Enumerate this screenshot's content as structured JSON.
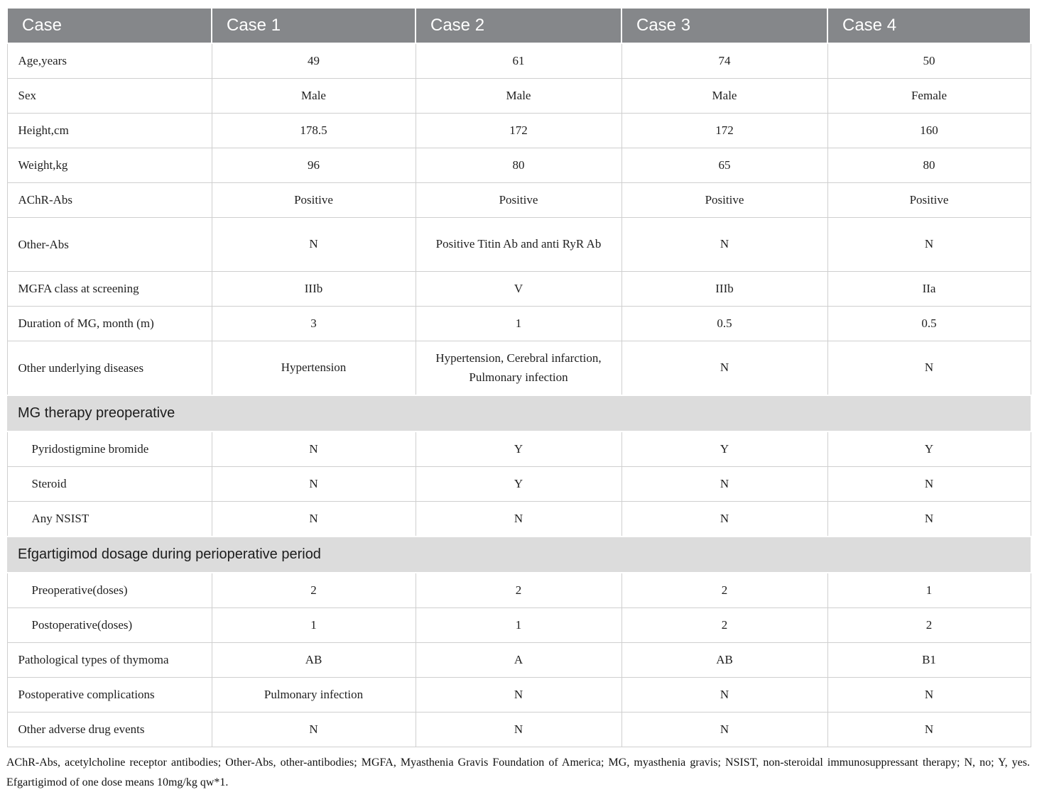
{
  "table": {
    "header": {
      "label": "Case",
      "columns": [
        "Case 1",
        "Case 2",
        "Case 3",
        "Case 4"
      ]
    },
    "rows": [
      {
        "type": "row",
        "label": "Age,years",
        "values": [
          "49",
          "61",
          "74",
          "50"
        ]
      },
      {
        "type": "row",
        "label": "Sex",
        "values": [
          "Male",
          "Male",
          "Male",
          "Female"
        ]
      },
      {
        "type": "row",
        "label": "Height,cm",
        "values": [
          "178.5",
          "172",
          "172",
          "160"
        ]
      },
      {
        "type": "row",
        "label": "Weight,kg",
        "values": [
          "96",
          "80",
          "65",
          "80"
        ]
      },
      {
        "type": "row",
        "label": "AChR-Abs",
        "values": [
          "Positive",
          "Positive",
          "Positive",
          "Positive"
        ]
      },
      {
        "type": "row",
        "label": "Other-Abs",
        "values": [
          "N",
          "Positive Titin Ab and anti RyR Ab",
          "N",
          "N"
        ],
        "tall": true
      },
      {
        "type": "row",
        "label": "MGFA class at screening",
        "values": [
          "IIIb",
          "V",
          "IIIb",
          "IIa"
        ]
      },
      {
        "type": "row",
        "label": "Duration of MG, month (m)",
        "values": [
          "3",
          "1",
          "0.5",
          "0.5"
        ]
      },
      {
        "type": "row",
        "label": "Other underlying diseases",
        "values": [
          "Hypertension",
          "Hypertension, Cerebral infarction, Pulmonary infection",
          "N",
          "N"
        ],
        "tall": true
      },
      {
        "type": "section",
        "label": "MG therapy preoperative"
      },
      {
        "type": "row",
        "label": "Pyridostigmine bromide",
        "values": [
          "N",
          "Y",
          "Y",
          "Y"
        ],
        "indent": true
      },
      {
        "type": "row",
        "label": "Steroid",
        "values": [
          "N",
          "Y",
          "N",
          "N"
        ],
        "indent": true
      },
      {
        "type": "row",
        "label": "Any NSIST",
        "values": [
          "N",
          "N",
          "N",
          "N"
        ],
        "indent": true
      },
      {
        "type": "section",
        "label": "Efgartigimod dosage during perioperative period"
      },
      {
        "type": "row",
        "label": "Preoperative(doses)",
        "values": [
          "2",
          "2",
          "2",
          "1"
        ],
        "indent": true
      },
      {
        "type": "row",
        "label": "Postoperative(doses)",
        "values": [
          "1",
          "1",
          "2",
          "2"
        ],
        "indent": true
      },
      {
        "type": "row",
        "label": "Pathological types of thymoma",
        "values": [
          "AB",
          "A",
          "AB",
          "B1"
        ]
      },
      {
        "type": "row",
        "label": "Postoperative complications",
        "values": [
          "Pulmonary infection",
          "N",
          "N",
          "N"
        ]
      },
      {
        "type": "row",
        "label": "Other adverse drug events",
        "values": [
          "N",
          "N",
          "N",
          "N"
        ]
      }
    ],
    "footnote": "AChR-Abs, acetylcholine receptor antibodies; Other-Abs, other-antibodies; MGFA, Myasthenia Gravis Foundation of America; MG, myasthenia gravis; NSIST, non-steroidal immunosuppressant therapy; N, no; Y, yes. Efgartigimod of one dose means 10mg/kg qw*1."
  },
  "colors": {
    "header_bg": "#85878a",
    "header_text": "#ffffff",
    "section_bg": "#dcdcdc",
    "border": "#cfcfcf",
    "body_text": "#1f1f1f"
  }
}
